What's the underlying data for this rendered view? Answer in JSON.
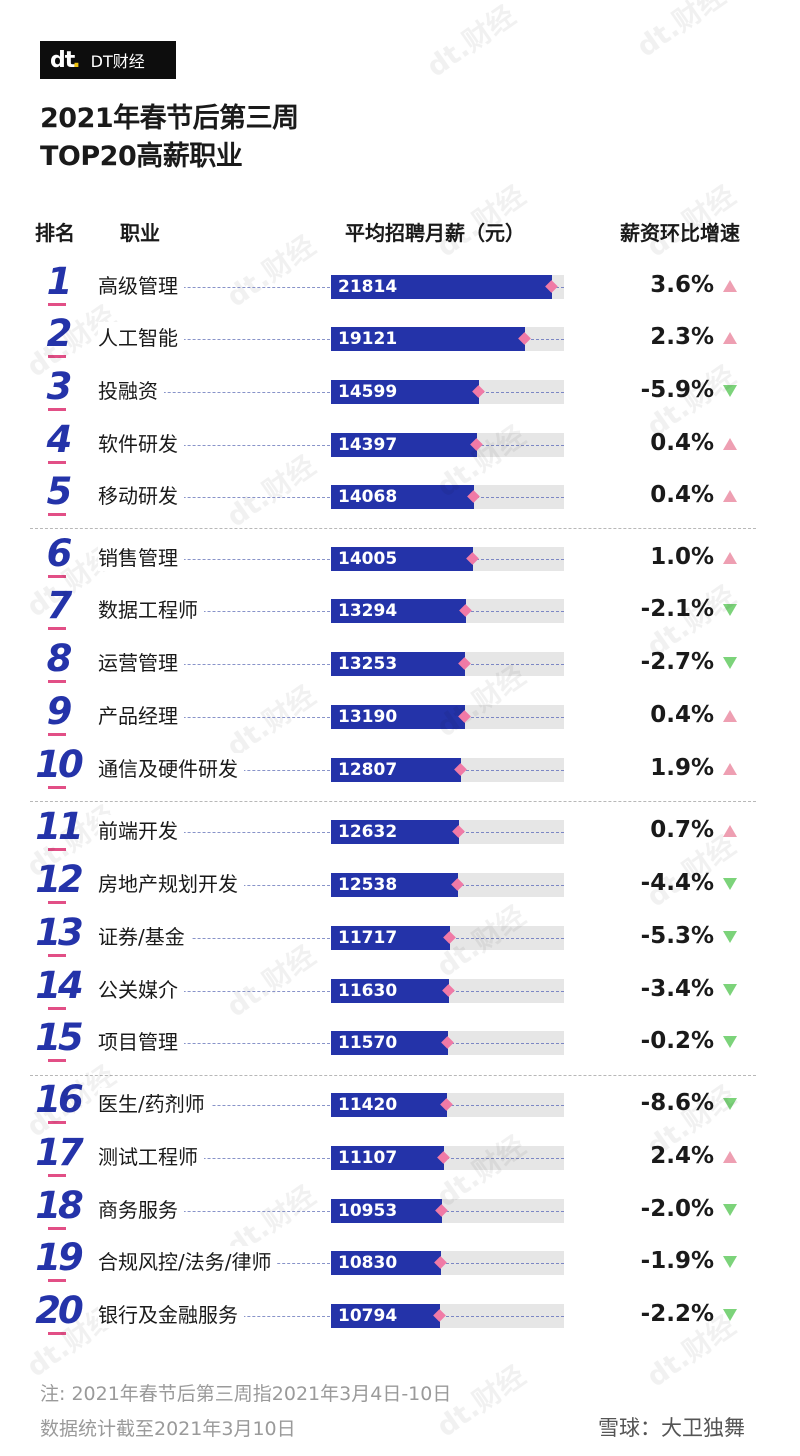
{
  "brand": {
    "mark": "dt",
    "name": "DT财经"
  },
  "title_lines": [
    "2021年春节后第三周",
    "TOP20高薪职业"
  ],
  "headers": {
    "rank": "排名",
    "job": "职业",
    "salary": "平均招聘月薪（元）",
    "change": "薪资环比增速"
  },
  "notes": [
    "注: 2021年春节后第三周指2021年3月4日-10日",
    "数据统计截至2021年3月10日"
  ],
  "source": "雪球：大卫独舞",
  "watermark": "dt.财经",
  "colors": {
    "bar": "#2433a9",
    "track": "#e6e6e6",
    "marker": "#f07aa6",
    "up": "#ee9fb2",
    "down": "#7cd37a"
  },
  "chart_data": {
    "type": "bar",
    "orientation": "horizontal",
    "x_axis_max": 23000,
    "categories": [
      "高级管理",
      "人工智能",
      "投融资",
      "软件研发",
      "移动研发",
      "销售管理",
      "数据工程师",
      "运营管理",
      "产品经理",
      "通信及硬件研发",
      "前端开发",
      "房地产规划开发",
      "证券/基金",
      "公关媒介",
      "项目管理",
      "医生/药剂师",
      "测试工程师",
      "商务服务",
      "合规风控/法务/律师",
      "银行及金融服务"
    ],
    "ranks": [
      "1",
      "2",
      "3",
      "4",
      "5",
      "6",
      "7",
      "8",
      "9",
      "10",
      "11",
      "12",
      "13",
      "14",
      "15",
      "16",
      "17",
      "18",
      "19",
      "20"
    ],
    "values": [
      21814,
      19121,
      14599,
      14397,
      14068,
      14005,
      13294,
      13253,
      13190,
      12807,
      12632,
      12538,
      11717,
      11630,
      11570,
      11420,
      11107,
      10953,
      10830,
      10794
    ],
    "changes": [
      "3.6%",
      "2.3%",
      "-5.9%",
      "0.4%",
      "0.4%",
      "1.0%",
      "-2.1%",
      "-2.7%",
      "0.4%",
      "1.9%",
      "0.7%",
      "-4.4%",
      "-5.3%",
      "-3.4%",
      "-0.2%",
      "-8.6%",
      "2.4%",
      "-2.0%",
      "-1.9%",
      "-2.2%"
    ],
    "directions": [
      "up",
      "up",
      "down",
      "up",
      "up",
      "up",
      "down",
      "down",
      "up",
      "up",
      "up",
      "down",
      "down",
      "down",
      "down",
      "down",
      "up",
      "down",
      "down",
      "down"
    ]
  }
}
